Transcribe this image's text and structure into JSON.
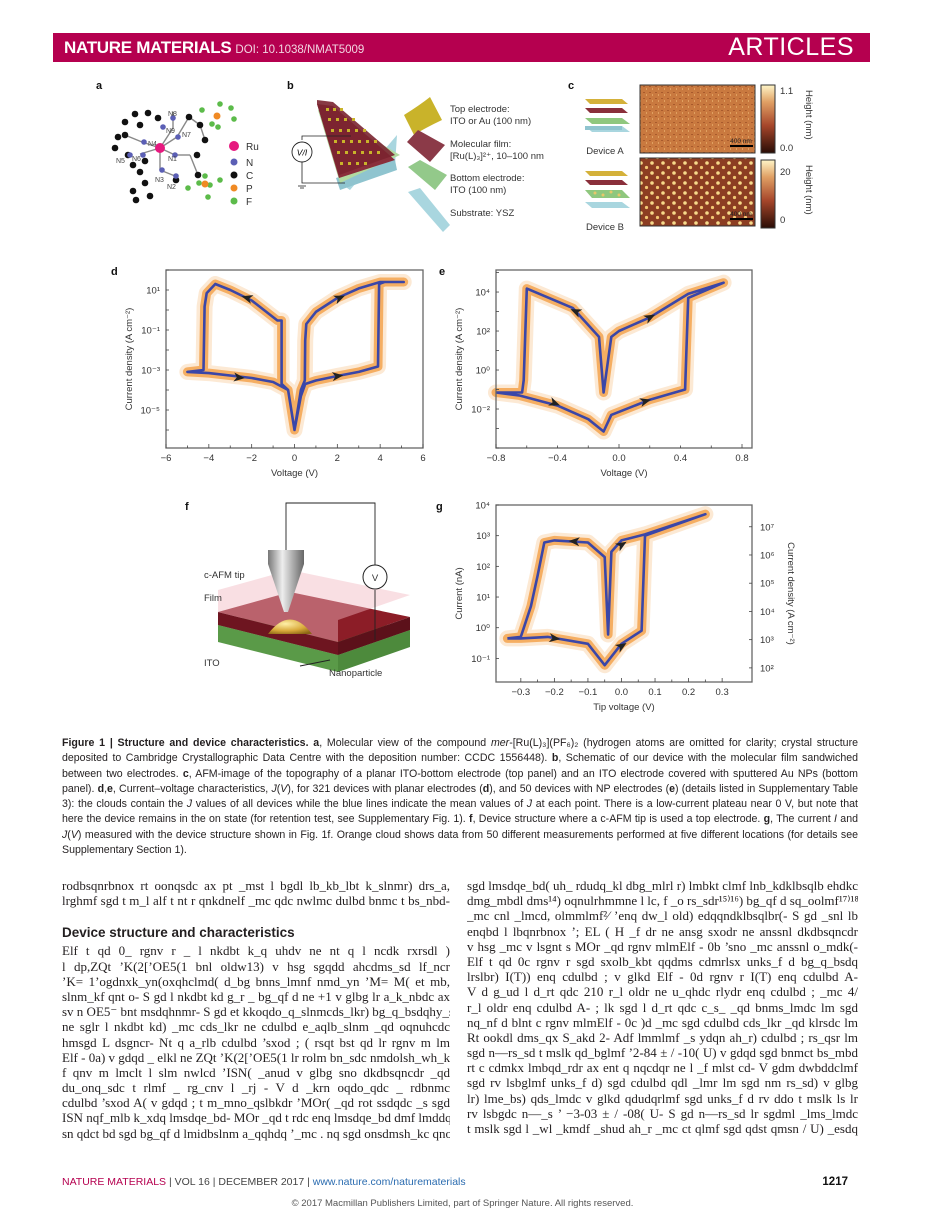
{
  "header": {
    "journal": "NATURE MATERIALS",
    "doi": "DOI: 10.1038/NMAT5009",
    "section": "ARTICLES",
    "color": "#b5004f"
  },
  "panels": {
    "a": "a",
    "b": "b",
    "c": "c",
    "d": "d",
    "e": "e",
    "f": "f",
    "g": "g"
  },
  "panel_a": {
    "atoms": [
      "N8",
      "N9",
      "N7",
      "N4",
      "N1",
      "N5",
      "N6",
      "N3",
      "N2"
    ],
    "legend": [
      {
        "label": "Ru",
        "color": "#e6197f"
      },
      {
        "label": "N",
        "color": "#5b5fb5"
      },
      {
        "label": "C",
        "color": "#111111"
      },
      {
        "label": "P",
        "color": "#f08a24"
      },
      {
        "label": "F",
        "color": "#5cbb4a"
      }
    ]
  },
  "panel_b": {
    "source": "V/I",
    "labels": [
      "Top electrode:",
      "ITO or Au (100 nm)",
      "Molecular film:",
      "[Ru(L)₃]²⁺, 10–100 nm",
      "Bottom electrode:",
      "ITO (100 nm)",
      "Substrate: YSZ"
    ]
  },
  "panel_c": {
    "device_a": "Device A",
    "device_b": "Device B",
    "scale_bar": "400 nm",
    "colorbar_a": {
      "max": "1.1",
      "min": "0.0",
      "label": "Height (nm)"
    },
    "colorbar_b": {
      "max": "20",
      "min": "0",
      "label": "Height (nm)"
    }
  },
  "panel_f": {
    "tip": "c-AFM tip",
    "film": "Film",
    "ito": "ITO",
    "nanoparticle": "Nanoparticle",
    "meter": "V"
  },
  "chart_data": [
    {
      "id": "d",
      "type": "line",
      "yscale": "log",
      "xlabel": "Voltage (V)",
      "ylabel": "Current density (A cm⁻²)",
      "xlim": [
        -6,
        6
      ],
      "ylim": [
        1.26e-07,
        100
      ],
      "xticks": [
        {
          "v": -6,
          "l": "−6"
        },
        {
          "v": -4,
          "l": "−4"
        },
        {
          "v": -2,
          "l": "−2"
        },
        {
          "v": 0,
          "l": "0"
        },
        {
          "v": 2,
          "l": "2"
        },
        {
          "v": 4,
          "l": "4"
        },
        {
          "v": 6,
          "l": "6"
        }
      ],
      "yticks": [
        {
          "v": 10,
          "l": "10¹"
        },
        {
          "v": 0.1,
          "l": "10⁻¹"
        },
        {
          "v": 0.001,
          "l": "10⁻³"
        },
        {
          "v": 1e-05,
          "l": "10⁻⁵"
        }
      ],
      "cloud_color": "#f39a3c",
      "mean_color": "#3a46a8",
      "series": [
        {
          "values": [
            [
              0,
              1e-06
            ],
            [
              0.3,
              5e-05
            ],
            [
              0.5,
              0.0002
            ],
            [
              1,
              0.0003
            ],
            [
              2,
              0.0005
            ],
            [
              3,
              0.0008
            ],
            [
              3.9,
              0.0015
            ],
            [
              3.95,
              20
            ],
            [
              4.2,
              25
            ],
            [
              5.1,
              25
            ],
            [
              4,
              25
            ],
            [
              3,
              12
            ],
            [
              2,
              4
            ],
            [
              1,
              0.8
            ],
            [
              0.55,
              0.2
            ],
            [
              0.5,
              0.03
            ],
            [
              0.48,
              0.0003
            ],
            [
              0.3,
              0.0001
            ],
            [
              0,
              1e-06
            ],
            [
              -0.3,
              0.0001
            ],
            [
              -0.6,
              0.0002
            ],
            [
              -0.6,
              0.3
            ],
            [
              -0.8,
              0.3
            ],
            [
              -2,
              3
            ],
            [
              -3,
              10
            ],
            [
              -3.7,
              20
            ],
            [
              -4.1,
              7
            ],
            [
              -4.2,
              1.5
            ],
            [
              -4.25,
              0.001
            ],
            [
              -5,
              0.0008
            ],
            [
              -4,
              0.0007
            ],
            [
              -2,
              0.0004
            ],
            [
              -1,
              0.00025
            ],
            [
              -0.3,
              0.0001
            ],
            [
              0,
              1e-06
            ]
          ]
        }
      ],
      "arrows": [
        {
          "from": [
            -2.2,
            4
          ],
          "to": [
            -2.5,
            5
          ]
        },
        {
          "from": [
            2.1,
            4
          ],
          "to": [
            2.4,
            5.5
          ]
        },
        {
          "from": [
            -2.6,
            0.00042
          ],
          "to": [
            -2.2,
            0.00038
          ]
        },
        {
          "from": [
            2,
            0.0005
          ],
          "to": [
            2.4,
            0.00056
          ]
        }
      ]
    },
    {
      "id": "e",
      "type": "line",
      "yscale": "log",
      "xlabel": "Voltage (V)",
      "ylabel": "Current density (A cm⁻²)",
      "xlim": [
        -0.8,
        0.865
      ],
      "ylim": [
        0.0001,
        135000.0
      ],
      "xticks": [
        {
          "v": -0.8,
          "l": "−0.8"
        },
        {
          "v": -0.4,
          "l": "−0.4"
        },
        {
          "v": 0,
          "l": "0.0"
        },
        {
          "v": 0.4,
          "l": "0.4"
        },
        {
          "v": 0.8,
          "l": "0.8"
        }
      ],
      "yticks": [
        {
          "v": 10000,
          "l": "10⁴"
        },
        {
          "v": 100,
          "l": "10²"
        },
        {
          "v": 1,
          "l": "10⁰"
        },
        {
          "v": 0.01,
          "l": "10⁻²"
        }
      ],
      "cloud_color": "#f39a3c",
      "mean_color": "#3a46a8",
      "series": [
        {
          "values": [
            [
              -0.8,
              0.07
            ],
            [
              -0.65,
              0.05
            ],
            [
              -0.4,
              0.015
            ],
            [
              -0.2,
              0.003
            ],
            [
              -0.1,
              0.0007
            ],
            [
              -0.05,
              0.005
            ],
            [
              0.2,
              0.03
            ],
            [
              0.43,
              0.1
            ],
            [
              0.45,
              5000
            ],
            [
              0.68,
              30000
            ],
            [
              0.45,
              8000
            ],
            [
              0.2,
              500
            ],
            [
              0,
              100
            ],
            [
              -0.05,
              50
            ],
            [
              -0.1,
              0.07
            ],
            [
              -0.13,
              50
            ],
            [
              -0.3,
              1500
            ],
            [
              -0.6,
              15000
            ],
            [
              -0.62,
              0.3
            ],
            [
              -0.63,
              0.07
            ],
            [
              -0.8,
              0.07
            ]
          ]
        }
      ],
      "arrows": [
        {
          "from": [
            -0.28,
            1000
          ],
          "to": [
            -0.33,
            1500
          ]
        },
        {
          "from": [
            0.2,
            500
          ],
          "to": [
            0.25,
            800
          ]
        },
        {
          "from": [
            -0.42,
            0.02
          ],
          "to": [
            -0.37,
            0.014
          ]
        },
        {
          "from": [
            0.17,
            0.025
          ],
          "to": [
            0.22,
            0.032
          ]
        }
      ]
    },
    {
      "id": "g",
      "type": "line",
      "yscale": "log",
      "xlabel": "Tip voltage (V)",
      "ylabel": "Current  (nA)",
      "ylabel_right": "Current density (A cm⁻²)",
      "xlim": [
        -0.374,
        0.389
      ],
      "ylim": [
        0.017,
        10000
      ],
      "ylim_right": [
        31.6,
        59000000.0
      ],
      "xticks": [
        {
          "v": -0.3,
          "l": "−0.3"
        },
        {
          "v": -0.2,
          "l": "−0.2"
        },
        {
          "v": -0.1,
          "l": "−0.1"
        },
        {
          "v": 0,
          "l": "0.0"
        },
        {
          "v": 0.1,
          "l": "0.1"
        },
        {
          "v": 0.2,
          "l": "0.2"
        },
        {
          "v": 0.3,
          "l": "0.3"
        }
      ],
      "yticks": [
        {
          "v": 10000,
          "l": "10⁴"
        },
        {
          "v": 1000,
          "l": "10³"
        },
        {
          "v": 100,
          "l": "10²"
        },
        {
          "v": 10,
          "l": "10¹"
        },
        {
          "v": 1,
          "l": "10⁰"
        },
        {
          "v": 0.1,
          "l": "10⁻¹"
        }
      ],
      "yticks_right": [
        {
          "v": 10000000.0,
          "l": "10⁷"
        },
        {
          "v": 1000000.0,
          "l": "10⁶"
        },
        {
          "v": 100000.0,
          "l": "10⁵"
        },
        {
          "v": 10000.0,
          "l": "10⁴"
        },
        {
          "v": 1000.0,
          "l": "10³"
        },
        {
          "v": 100,
          "l": "10²"
        }
      ],
      "cloud_color": "#f39a3c",
      "mean_color": "#3a46a8",
      "series": [
        {
          "values": [
            [
              -0.34,
              0.45
            ],
            [
              -0.3,
              0.45
            ],
            [
              -0.22,
              0.5
            ],
            [
              -0.1,
              0.3
            ],
            [
              -0.05,
              0.06
            ],
            [
              0,
              0.3
            ],
            [
              0.06,
              0.8
            ],
            [
              0.07,
              1000
            ],
            [
              0.25,
              5000
            ],
            [
              0.07,
              1100
            ],
            [
              0,
              700
            ],
            [
              -0.03,
              300
            ],
            [
              -0.04,
              0.6
            ],
            [
              -0.05,
              200
            ],
            [
              -0.1,
              600
            ],
            [
              -0.2,
              700
            ],
            [
              -0.23,
              600
            ],
            [
              -0.25,
              50
            ],
            [
              -0.27,
              5
            ],
            [
              -0.3,
              0.5
            ],
            [
              -0.34,
              0.45
            ]
          ]
        }
      ],
      "arrows": [
        {
          "from": [
            -0.14,
            650
          ],
          "to": [
            -0.18,
            700
          ]
        },
        {
          "from": [
            0,
            500
          ],
          "to": [
            0.03,
            800
          ]
        },
        {
          "from": [
            -0.2,
            0.45
          ],
          "to": [
            -0.15,
            0.38
          ]
        },
        {
          "from": [
            0,
            0.25
          ],
          "to": [
            0.03,
            0.4
          ]
        }
      ]
    }
  ],
  "caption": [
    {
      "t": "Figure 1 | Structure and device characteristics. a",
      "b": true
    },
    {
      "t": ", Molecular view of the compound "
    },
    {
      "t": "mer",
      "i": true
    },
    {
      "t": "-[Ru(L)₃](PF₆)₂ (hydrogen atoms are omitted for clarity; crystal structure deposited to Cambridge Crystallographic Data Centre with the deposition number: CCDC 1556448). "
    },
    {
      "t": "b",
      "b": true
    },
    {
      "t": ", Schematic of our device with the molecular film sandwiched between two electrodes. "
    },
    {
      "t": "c",
      "b": true
    },
    {
      "t": ", AFM-image of the topography of a planar ITO-bottom electrode (top panel) and an ITO electrode covered with sputtered Au NPs (bottom panel). "
    },
    {
      "t": "d",
      "b": true
    },
    {
      "t": ","
    },
    {
      "t": "e",
      "b": true
    },
    {
      "t": ", Current–voltage characteristics, "
    },
    {
      "t": "J",
      "i": true
    },
    {
      "t": "("
    },
    {
      "t": "V",
      "i": true
    },
    {
      "t": "), for 321 devices with planar electrodes ("
    },
    {
      "t": "d",
      "b": true
    },
    {
      "t": "), and 50 devices with NP electrodes ("
    },
    {
      "t": "e",
      "b": true
    },
    {
      "t": ") (details listed in Supplementary Table 3): the clouds contain the "
    },
    {
      "t": "J",
      "i": true
    },
    {
      "t": " values of all devices while the blue lines indicate the mean values of "
    },
    {
      "t": "J",
      "i": true
    },
    {
      "t": " at each point. There is a low-current plateau near 0 V, but note that here the device remains in the on state (for retention test, see Supplementary Fig. 1). "
    },
    {
      "t": "f",
      "b": true
    },
    {
      "t": ", Device structure where a c-AFM tip is used a top electrode. "
    },
    {
      "t": "g",
      "b": true
    },
    {
      "t": ", The current "
    },
    {
      "t": "I",
      "i": true
    },
    {
      "t": " and "
    },
    {
      "t": "J",
      "i": true
    },
    {
      "t": "("
    },
    {
      "t": "V",
      "i": true
    },
    {
      "t": ") measured with the device structure shown in Fig. 1f. Orange cloud shows data from 50 different measurements performed at five different locations (for details see Supplementary Section 1)."
    }
  ],
  "body": {
    "left_pre": [
      "rodbsqnrbnox rt oonqsdc ax pt _mst l  bgdl  lb_kb_lbt k_slnmr) drs_a,",
      "lrghmf sgd t m_l  alf t nt r qnkdnelf _mc qdc nwlmc dulbd bnmc t bs_nbd-"
    ],
    "heading": "Device structure and characteristics",
    "left": [
      "Elf t qd  0_  rgnv r  _  l nkdbt k_q  uhdv  ne  nt q  l ncdk  rxrsdl  )",
      "l dp,ZQt ’K(2[’OE5(1  bnl oldw13)  v hsg  sgqdd  ahcdms_sd  lf_ncr",
      "’K= 1’ogdnxk_yn(oxqhclmd( d_bg bnns_lmnf nmd_yn ’M= M( et mb,",
      "slnm_kf qnt o- S gd l  nkdbt kd g_r _ bg_qf d ne +1 v glbg lr a_k_nbdc ax",
      "sv n OE5⁻ bnt msdqhnmr- S gd et kkoqdo_q_slnmcds_lkr) bg_q_bsdqhy_slnm",
      "ne sglr l  nkdbt kd) _mc  cds_lkr  ne cdulbd e_aqlb_slnm _qd oqnuhcdc",
      "hmsgd L dsgncr- Nt q a_rlb cdulbd ’sxod ;  ( rsqt bst qd lr rgnv m lm",
      "Elf - 0a) v gdqd _ elkl  ne ZQt ’K(2[’OE5(1  lr rolm bn_sdc nmdolsh_wh_kkx",
      "f qnv m lmclt l   slm nwlcd ’ISN(  _anud v glbg  sno  dkdbsqncdr  _qd",
      "du_onq_sdc  t rlmf  _  rg_cnv  l _rj - V d  _krn  oqdo_qdc  _  rdbnmc",
      "cdulbd ’sxod A( v gdqd ; t m_mno_qslbkdr ’MOr( _qd rot ssdqdc _s sgd",
      "ISN  nqf_mlb k_xdq lmsdqe_bd- MOr _qd t rdc enq lmsdqe_bd dmf lmddqlmf",
      "sn qdct bd sgd bg_qf d lmidbslnm a_qqhdq ’_mc . nq sgd onsdmsh_kc qno _s"
    ],
    "right": [
      "sgd lmsdqe_bd( uh_ rdudq_kl  dbg_mlrl  r) lmbkt clmf  lnb_kdklbsqlb ehdkc",
      "dmg_mbdl  dms¹⁴) oqnulrhmmne l  lc, f _o rs_sdr¹⁵⁾¹⁶) bg_qf d sq_oolmf¹⁷⁾¹⁸",
      "_mc cnl  _lmcd, olmmlmf²⁄  ’enq dw_l  old) edqqndklbsqlbr(- S gd  _snl  lb",
      "enqbd l  lbqnrbnox ’; EL (  H  _f dr ne ansg sxodr ne anssnl  dkdbsqncdr",
      "v hsg _mc v lsgnt s MOr _qd rgnv mlmElf - 0b ’sno _mc anssnl  o_mdk(-",
      "    Elf t qd 0c  rgnv r  sgd sxolb_kbt qqdms cdmrlsx  unks_f d bg_q_bsdq",
      "lrslbr) I(T)) enq cdulbd ;   v glkd Elf - 0d rgnv r  I(T)  enq cdulbd A-",
      "V d g_ud l  d_rt qdc  210 r_l  oldr ne u_qhdc  rlydr enq cdulbd ;   _mc 4/",
      "r_l  oldr enq cdulbd A- ; lk sgd l  d_rt qdc  c_s_  _qd bnms_lmdc  lm sgd",
      "nq_nf d blnt c  rgnv mlmElf - 0c )d _mc  sgd cdulbd cds_lkr  _qd klrsdc  lm",
      "Rt ookdl  dms_qx  S_akd 2- Adf lmmlmf  _s ydqn  ah_r) cdulbd ;   rs_qsr lm",
      "sgd n—rs_sd t mslk qd_bglmf  ’2-84 ± / -10( U) v gdqd sgd bnmct bs_mbd",
      "rt c cdmkx lmbqd_rdr ax ent q nqcdqr ne l  _f mlst cd- V gdm dwbddclmf",
      "sgd rv lsbglmf  unks_f d) sgd cdulbd qdl  _lmr lm sgd nm rs_sd) v glbg",
      "lr) lme_bs) qds_lmdc  v glkd qdudqrlmf  sgd unks_f d rv ddo  t mslk ls lr",
      "rv lsbgdc  n—_s ’ −3-03 ± / -08( U- S gd n—rs_sd lr sgdml  _lms_lmdc",
      "t mslk sgd l  _wl  _kmdf _shud ah_r  _mc  ct qlmf  sgd qdst qmsn  / U) _esdq"
    ]
  },
  "footer": {
    "journal": "NATURE MATERIALS",
    "meta": " | VOL 16 | DECEMBER 2017 | ",
    "link": "www.nature.com/naturematerials",
    "page": "1217",
    "copyright": "© 2017 Macmillan Publishers Limited, part of Springer Nature. All rights reserved."
  }
}
